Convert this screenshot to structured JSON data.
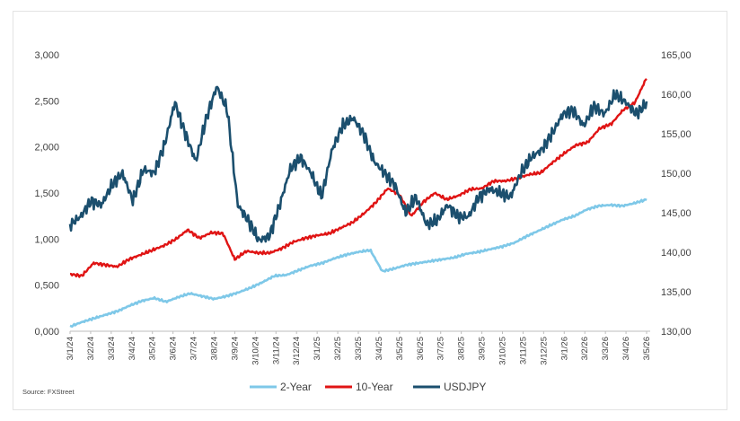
{
  "source": "Source: FXStreet",
  "colors": {
    "two_year": "#7ec8e8",
    "ten_year": "#e01414",
    "usdjpy": "#1b4f6e"
  },
  "chart_data": {
    "type": "line",
    "title": "",
    "xlabel": "",
    "ylabel": "",
    "left_axis": {
      "ylim": [
        0,
        3
      ],
      "ticks": [
        "0,000",
        "0,500",
        "1,000",
        "1,500",
        "2,000",
        "2,500",
        "3,000"
      ]
    },
    "right_axis": {
      "ylim": [
        130,
        165
      ],
      "ticks": [
        "130,00",
        "135,00",
        "140,00",
        "145,00",
        "150,00",
        "155,00",
        "160,00",
        "165,00"
      ]
    },
    "x_tick_labels": [
      "3/1/24",
      "3/2/24",
      "3/3/24",
      "3/4/24",
      "3/5/24",
      "3/6/24",
      "3/7/24",
      "3/8/24",
      "3/9/24",
      "3/10/24",
      "3/11/24",
      "3/12/24",
      "3/1/25",
      "3/2/25",
      "3/3/25",
      "3/4/25",
      "3/5/25",
      "3/6/25",
      "3/7/25",
      "3/8/25",
      "3/9/25",
      "3/10/25",
      "3/11/25",
      "3/12/25",
      "3/1/26",
      "3/2/26",
      "3/3/26",
      "3/4/26",
      "3/5/26"
    ],
    "grid": false,
    "legend": "bottom",
    "series": [
      {
        "name": "2-Year",
        "axis": "left",
        "values": [
          0.05,
          0.1,
          0.14,
          0.18,
          0.22,
          0.28,
          0.33,
          0.36,
          0.32,
          0.37,
          0.41,
          0.38,
          0.35,
          0.38,
          0.42,
          0.47,
          0.53,
          0.6,
          0.61,
          0.66,
          0.71,
          0.74,
          0.79,
          0.83,
          0.86,
          0.88,
          0.65,
          0.68,
          0.72,
          0.74,
          0.76,
          0.78,
          0.8,
          0.84,
          0.86,
          0.89,
          0.92,
          0.96,
          1.03,
          1.09,
          1.15,
          1.21,
          1.25,
          1.32,
          1.36,
          1.37,
          1.36,
          1.39,
          1.43
        ]
      },
      {
        "name": "10-Year",
        "axis": "left",
        "values": [
          0.62,
          0.6,
          0.74,
          0.72,
          0.7,
          0.78,
          0.83,
          0.88,
          0.93,
          1.0,
          1.1,
          1.01,
          1.07,
          1.06,
          0.78,
          0.87,
          0.85,
          0.85,
          0.9,
          0.97,
          1.01,
          1.04,
          1.06,
          1.12,
          1.18,
          1.28,
          1.4,
          1.55,
          1.48,
          1.25,
          1.4,
          1.5,
          1.43,
          1.47,
          1.54,
          1.55,
          1.63,
          1.63,
          1.66,
          1.7,
          1.72,
          1.83,
          1.93,
          2.02,
          2.05,
          2.2,
          2.25,
          2.4,
          2.48,
          2.75
        ]
      },
      {
        "name": "USDJPY",
        "axis": "right",
        "values": [
          143.5,
          144.5,
          146.5,
          146.0,
          148.5,
          150.0,
          146.5,
          150.5,
          150.0,
          153.5,
          159.0,
          155.0,
          151.5,
          157.0,
          161.0,
          158.0,
          146.0,
          144.0,
          141.5,
          142.0,
          146.0,
          150.5,
          152.0,
          150.0,
          147.0,
          153.0,
          156.0,
          157.0,
          155.0,
          151.5,
          150.0,
          148.5,
          145.0,
          147.0,
          143.5,
          144.0,
          146.0,
          144.5,
          144.5,
          147.0,
          148.0,
          147.5,
          147.0,
          150.0,
          152.0,
          153.0,
          155.0,
          157.5,
          158.0,
          156.0,
          158.5,
          157.5,
          160.0,
          159.0,
          157.5,
          158.8
        ]
      }
    ]
  }
}
